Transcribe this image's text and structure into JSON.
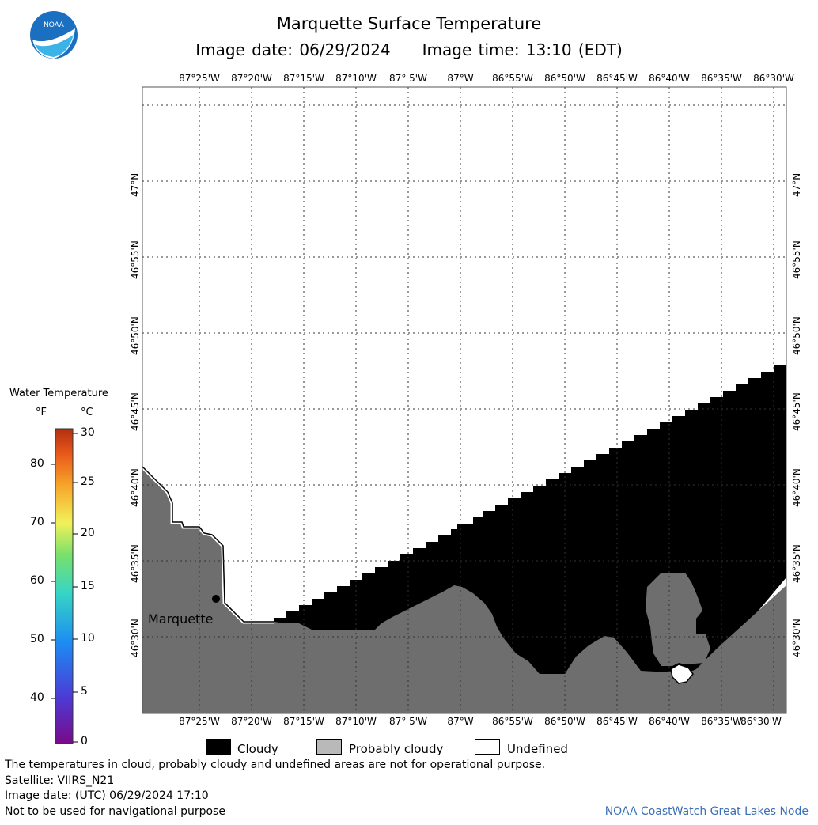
{
  "title": "Marquette Surface Temperature",
  "image_date": "Image date: 06/29/2024",
  "image_time": "Image time: 13:10 (EDT)",
  "logo": {
    "text": "NOAA",
    "colors": [
      "#1a6fc0",
      "#3cb3e6",
      "#ffffff"
    ]
  },
  "lon_labels": [
    "87°25'W",
    "87°20'W",
    "87°15'W",
    "87°10'W",
    "87° 5'W",
    "87°W",
    "86°55'W",
    "86°50'W",
    "86°45'W",
    "86°40'W",
    "86°35'W",
    "86°30'W"
  ],
  "lat_labels": [
    "47°N",
    "46°55'N",
    "46°50'N",
    "46°45'N",
    "46°40'N",
    "46°35'N",
    "46°30'N"
  ],
  "city": {
    "name": "Marquette"
  },
  "legend": {
    "title": "Water Temperature",
    "unit_f": "°F",
    "unit_c": "°C",
    "f_ticks": [
      "80",
      "70",
      "60",
      "50",
      "40"
    ],
    "c_ticks": [
      "30",
      "25",
      "20",
      "15",
      "10",
      "5",
      "0"
    ]
  },
  "key": [
    {
      "label": "Cloudy",
      "color": "#000000"
    },
    {
      "label": "Probably cloudy",
      "color": "#b9b9b9"
    },
    {
      "label": "Undefined",
      "color": "#ffffff"
    }
  ],
  "footer": {
    "note": "The temperatures in cloud, probably cloudy and undefined areas are not for operational purpose.",
    "satellite": "Satellite: VIIRS_N21",
    "utc_date": "Image date: (UTC) 06/29/2024  17:10",
    "nav_warning": "Not to be used for navigational purpose",
    "credit": "NOAA CoastWatch Great Lakes Node"
  },
  "colors": {
    "land": "#6e6e6e",
    "cloud": "#000000",
    "grid": "#333333"
  }
}
